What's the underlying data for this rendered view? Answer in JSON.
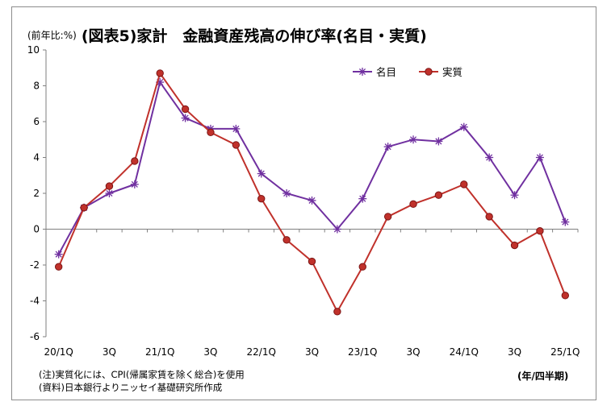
{
  "chart_data": {
    "type": "line",
    "unit_label": "(前年比:%)",
    "title": "(図表5)家計　金融資産残高の伸び率(名目・実質)",
    "x_labels": [
      "20/1Q",
      "",
      "3Q",
      "",
      "21/1Q",
      "",
      "3Q",
      "",
      "22/1Q",
      "",
      "3Q",
      "",
      "23/1Q",
      "",
      "3Q",
      "",
      "24/1Q",
      "",
      "3Q",
      "",
      "25/1Q"
    ],
    "y_ticks": [
      "10",
      "8",
      "6",
      "4",
      "2",
      "0",
      "-2",
      "-4",
      "-6"
    ],
    "ylim": [
      -6,
      10
    ],
    "grid": false,
    "legend_position": "top-right",
    "series": [
      {
        "name": "名目",
        "color": "#7030a0",
        "marker": "asterisk",
        "values": [
          -1.4,
          1.2,
          2.0,
          2.5,
          8.2,
          6.2,
          5.6,
          5.6,
          3.1,
          2.0,
          1.6,
          0.0,
          1.7,
          4.6,
          5.0,
          4.9,
          5.7,
          4.0,
          1.9,
          4.0,
          0.4
        ]
      },
      {
        "name": "実質",
        "color": "#c0312b",
        "marker": "circle",
        "values": [
          -2.1,
          1.2,
          2.4,
          3.8,
          8.7,
          6.7,
          5.4,
          4.7,
          1.7,
          -0.6,
          -1.8,
          -4.6,
          -2.1,
          0.7,
          1.4,
          1.9,
          2.5,
          0.7,
          -0.9,
          -0.1,
          -3.7
        ]
      }
    ]
  },
  "notes": {
    "note1": "(注)実質化には、CPI(帰属家賃を除く総合)を使用",
    "note2": "(資料)日本銀行よりニッセイ基礎研究所作成",
    "period_label": "(年/四半期)"
  }
}
